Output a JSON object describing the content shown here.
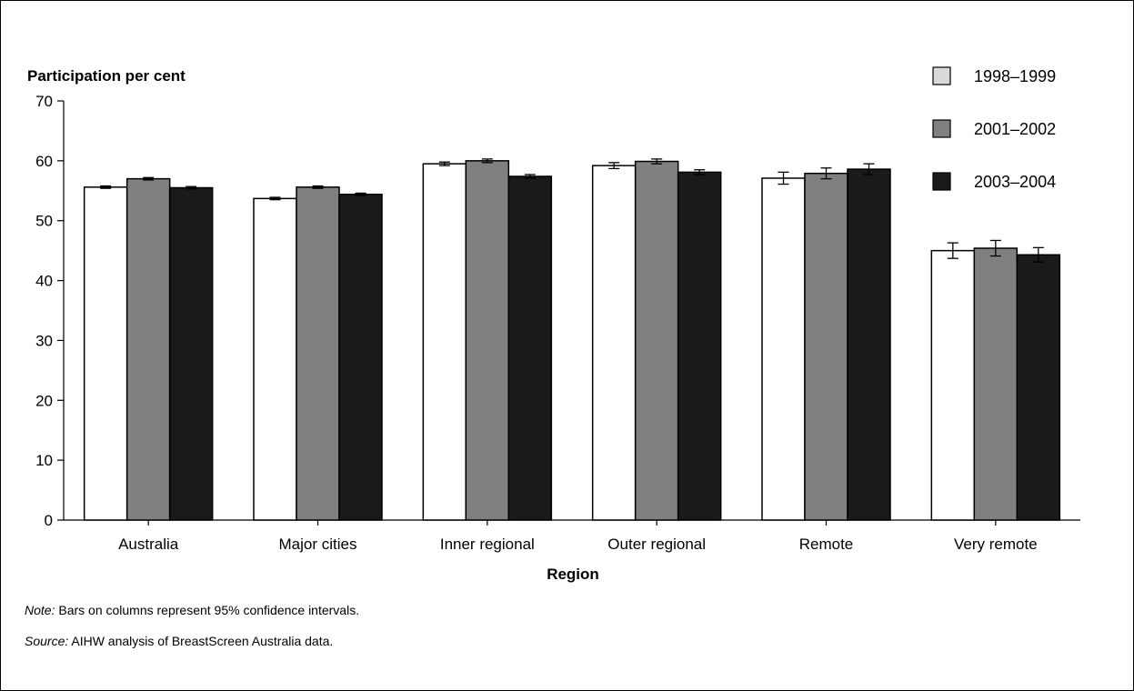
{
  "chart_data": {
    "type": "bar",
    "ylabel": "Participation per cent",
    "xlabel": "Region",
    "ylim": [
      0,
      70
    ],
    "yticks": [
      0,
      10,
      20,
      30,
      40,
      50,
      60,
      70
    ],
    "categories": [
      "Australia",
      "Major cities",
      "Inner regional",
      "Outer regional",
      "Remote",
      "Very remote"
    ],
    "series": [
      {
        "name": "1998–1999",
        "color": "#ffffff",
        "legend_color": "#d9d9d9",
        "values": [
          55.6,
          53.7,
          59.5,
          59.2,
          57.1,
          45.0
        ],
        "ci": [
          [
            55.4,
            55.8
          ],
          [
            53.5,
            53.9
          ],
          [
            59.2,
            59.8
          ],
          [
            58.7,
            59.7
          ],
          [
            56.1,
            58.1
          ],
          [
            43.7,
            46.3
          ]
        ]
      },
      {
        "name": "2001–2002",
        "color": "#808080",
        "legend_color": "#808080",
        "values": [
          57.0,
          55.6,
          60.0,
          59.9,
          57.9,
          45.4
        ],
        "ci": [
          [
            56.8,
            57.2
          ],
          [
            55.4,
            55.8
          ],
          [
            59.7,
            60.3
          ],
          [
            59.5,
            60.3
          ],
          [
            57.0,
            58.8
          ],
          [
            44.1,
            46.7
          ]
        ]
      },
      {
        "name": "2003–2004",
        "color": "#1a1a1a",
        "legend_color": "#1a1a1a",
        "values": [
          55.5,
          54.4,
          57.4,
          58.1,
          58.6,
          44.3
        ],
        "ci": [
          [
            55.3,
            55.7
          ],
          [
            54.2,
            54.6
          ],
          [
            57.1,
            57.7
          ],
          [
            57.7,
            58.5
          ],
          [
            57.7,
            59.5
          ],
          [
            43.1,
            45.5
          ]
        ]
      }
    ],
    "legend_position": "top-right",
    "grid": false
  },
  "notes": {
    "note_label": "Note:",
    "note_text": " Bars on columns represent 95% confidence intervals.",
    "source_label": "Source:",
    "source_text": " AIHW analysis of BreastScreen Australia data."
  }
}
